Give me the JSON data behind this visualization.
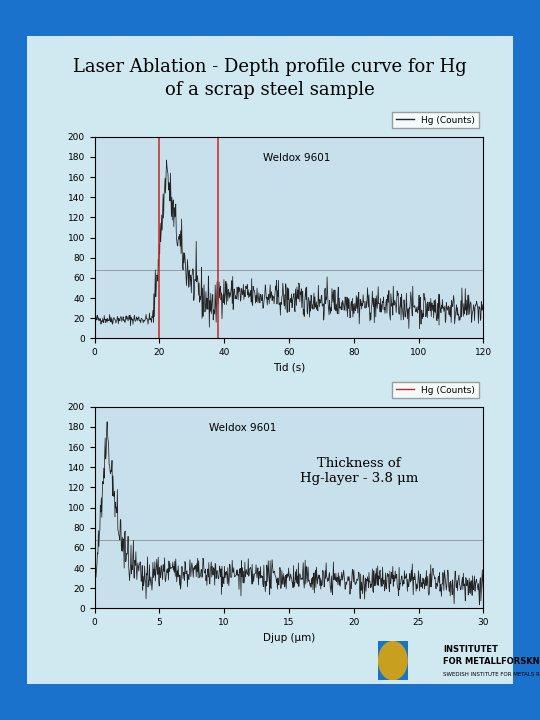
{
  "title": "Laser Ablation - Depth profile curve for Hg\nof a scrap steel sample",
  "title_fontsize": 13,
  "bg_outer": "#1a72cc",
  "bg_inner": "#d0e8f0",
  "bg_plot": "#c8e0ec",
  "plot1": {
    "xlabel": "Tid (s)",
    "xlim": [
      0,
      120
    ],
    "ylim": [
      0,
      200
    ],
    "yticks": [
      0,
      20,
      40,
      60,
      80,
      100,
      120,
      140,
      160,
      180,
      200
    ],
    "xticks": [
      0,
      20,
      40,
      60,
      80,
      100,
      120
    ],
    "vline1": 20,
    "vline2": 38,
    "hline_y": 68,
    "label": "Weldox 9601",
    "legend_label": "Hg (Counts)"
  },
  "plot2": {
    "xlabel": "Djup (μm)",
    "xlim": [
      0,
      30
    ],
    "ylim": [
      0,
      200
    ],
    "yticks": [
      0,
      20,
      40,
      60,
      80,
      100,
      120,
      140,
      160,
      180,
      200
    ],
    "xticks": [
      0,
      5,
      10,
      15,
      20,
      25,
      30
    ],
    "hline_y": 68,
    "label": "Weldox 9601",
    "legend_label": "Hg (Counts)",
    "annotation": "Thickness of\nHg-layer - 3.8 μm"
  },
  "line_color": "#222222",
  "vline_color": "#cc2222",
  "hline_color": "#444444",
  "logo_color": "#c8a020",
  "logo_text": "INSTITUTET\nFOR METALLFORSKNING",
  "logo_subtext": "SWEDISH INSTITUTE FOR METALS RESEARCH"
}
